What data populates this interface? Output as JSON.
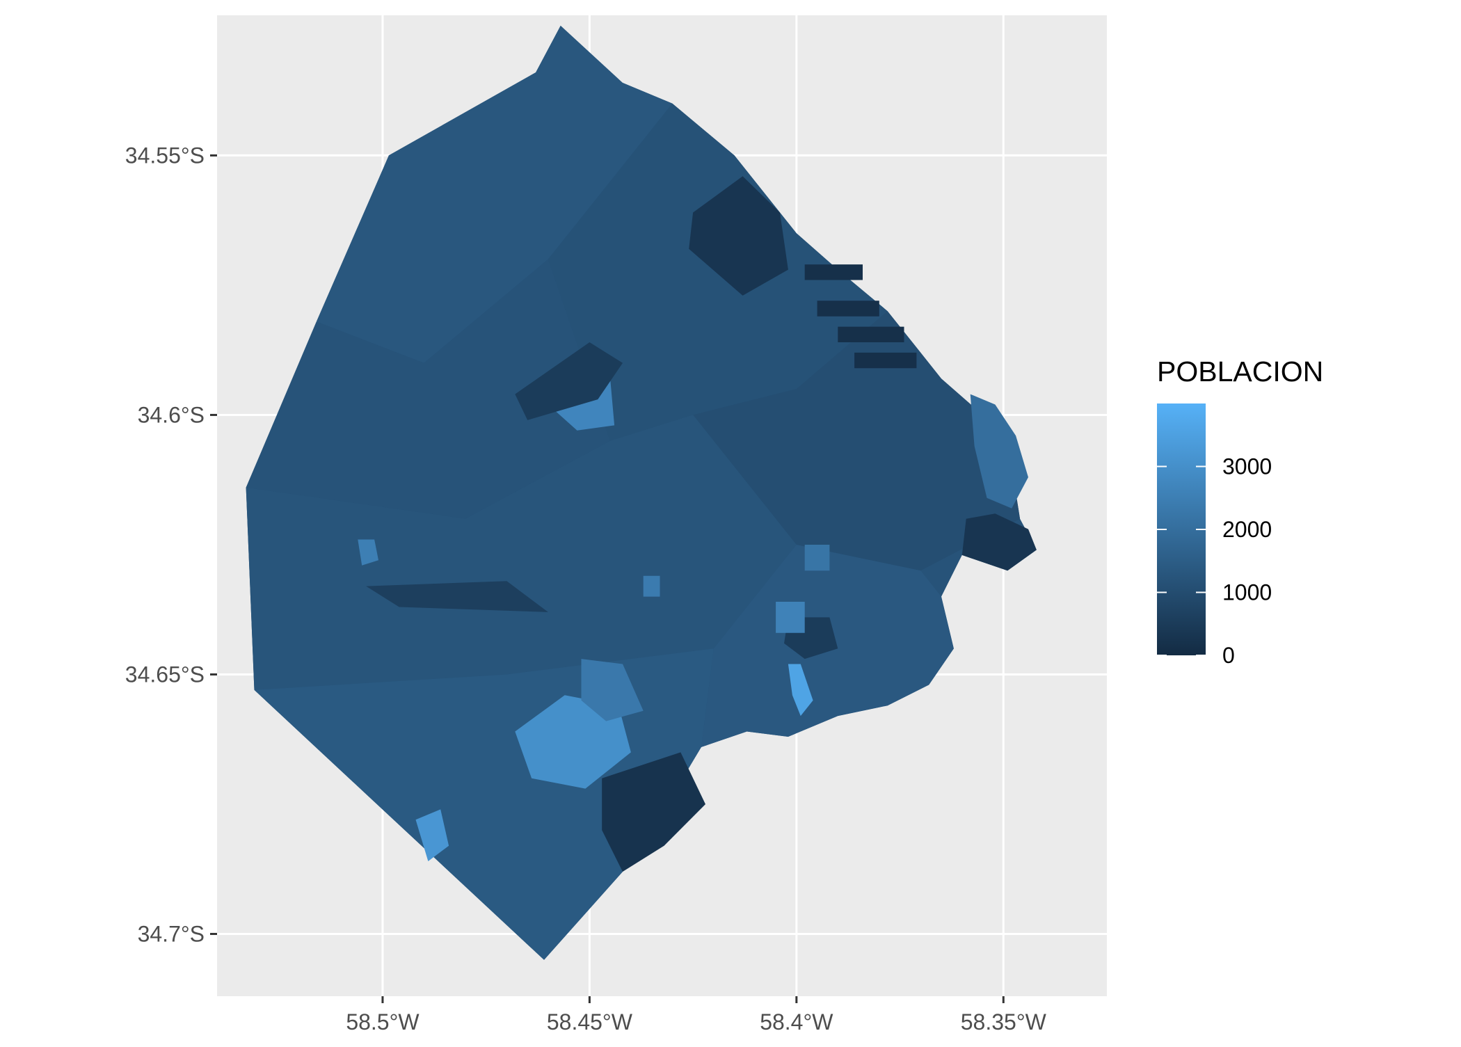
{
  "map": {
    "x_axis": {
      "label": "",
      "range": [
        -58.54,
        -58.325
      ],
      "ticks": [
        {
          "value": -58.5,
          "label": "58.5°W"
        },
        {
          "value": -58.45,
          "label": "58.45°W"
        },
        {
          "value": -58.4,
          "label": "58.4°W"
        },
        {
          "value": -58.35,
          "label": "58.35°W"
        }
      ]
    },
    "y_axis": {
      "label": "",
      "range": [
        -34.712,
        -34.523
      ],
      "ticks": [
        {
          "value": -34.55,
          "label": "34.55°S"
        },
        {
          "value": -34.6,
          "label": "34.6°S"
        },
        {
          "value": -34.65,
          "label": "34.65°S"
        },
        {
          "value": -34.7,
          "label": "34.7°S"
        }
      ]
    },
    "grid": true,
    "panel_background": "#EBEBEB",
    "legend": {
      "title": "POBLACION",
      "placement": "right",
      "low_color": "#132B43",
      "high_color": "#56B1F7",
      "range": [
        0,
        4000
      ],
      "ticks": [
        {
          "value": 0,
          "label": "0"
        },
        {
          "value": 1000,
          "label": "1000"
        },
        {
          "value": 2000,
          "label": "2000"
        },
        {
          "value": 3000,
          "label": "3000"
        }
      ]
    },
    "outline": [
      [
        -58.4985,
        -34.55
      ],
      [
        -58.463,
        -34.534
      ],
      [
        -58.457,
        -34.525
      ],
      [
        -58.454,
        -34.5285
      ],
      [
        -58.45,
        -34.533
      ],
      [
        -58.442,
        -34.536
      ],
      [
        -58.43,
        -34.54
      ],
      [
        -58.415,
        -34.55
      ],
      [
        -58.4,
        -34.565
      ],
      [
        -58.39,
        -34.572
      ],
      [
        -58.378,
        -34.58
      ],
      [
        -58.37,
        -34.588
      ],
      [
        -58.365,
        -34.593
      ],
      [
        -58.355,
        -34.6
      ],
      [
        -58.348,
        -34.61
      ],
      [
        -58.346,
        -34.62
      ],
      [
        -58.342,
        -34.626
      ],
      [
        -58.349,
        -34.63
      ],
      [
        -58.36,
        -34.627
      ],
      [
        -58.365,
        -34.635
      ],
      [
        -58.362,
        -34.645
      ],
      [
        -58.368,
        -34.652
      ],
      [
        -58.378,
        -34.656
      ],
      [
        -58.39,
        -34.658
      ],
      [
        -58.402,
        -34.662
      ],
      [
        -58.412,
        -34.661
      ],
      [
        -58.423,
        -34.664
      ],
      [
        -58.432,
        -34.676
      ],
      [
        -58.442,
        -34.688
      ],
      [
        -58.461,
        -34.705
      ],
      [
        -58.531,
        -34.653
      ],
      [
        -58.533,
        -34.614
      ],
      [
        -58.4985,
        -34.55
      ]
    ],
    "regions": [
      {
        "value": 1300,
        "poly": [
          [
            -58.4985,
            -34.55
          ],
          [
            -58.463,
            -34.534
          ],
          [
            -58.457,
            -34.525
          ],
          [
            -58.442,
            -34.536
          ],
          [
            -58.43,
            -34.54
          ],
          [
            -58.46,
            -34.57
          ],
          [
            -58.49,
            -34.59
          ],
          [
            -58.516,
            -34.582
          ]
        ]
      },
      {
        "value": 1200,
        "poly": [
          [
            -58.516,
            -34.582
          ],
          [
            -58.49,
            -34.59
          ],
          [
            -58.46,
            -34.57
          ],
          [
            -58.445,
            -34.605
          ],
          [
            -58.48,
            -34.62
          ],
          [
            -58.533,
            -34.614
          ]
        ]
      },
      {
        "value": 1150,
        "poly": [
          [
            -58.43,
            -34.54
          ],
          [
            -58.415,
            -34.55
          ],
          [
            -58.4,
            -34.565
          ],
          [
            -58.39,
            -34.572
          ],
          [
            -58.378,
            -34.58
          ],
          [
            -58.4,
            -34.595
          ],
          [
            -58.425,
            -34.6
          ],
          [
            -58.445,
            -34.605
          ],
          [
            -58.46,
            -34.57
          ]
        ]
      },
      {
        "value": 1050,
        "poly": [
          [
            -58.378,
            -34.58
          ],
          [
            -58.37,
            -34.588
          ],
          [
            -58.365,
            -34.593
          ],
          [
            -58.355,
            -34.6
          ],
          [
            -58.348,
            -34.61
          ],
          [
            -58.346,
            -34.62
          ],
          [
            -58.37,
            -34.63
          ],
          [
            -58.4,
            -34.625
          ],
          [
            -58.425,
            -34.6
          ],
          [
            -58.4,
            -34.595
          ]
        ]
      },
      {
        "value": 1250,
        "poly": [
          [
            -58.533,
            -34.614
          ],
          [
            -58.48,
            -34.62
          ],
          [
            -58.445,
            -34.605
          ],
          [
            -58.425,
            -34.6
          ],
          [
            -58.4,
            -34.625
          ],
          [
            -58.42,
            -34.645
          ],
          [
            -58.47,
            -34.65
          ],
          [
            -58.531,
            -34.653
          ]
        ]
      },
      {
        "value": 1350,
        "poly": [
          [
            -58.4,
            -34.625
          ],
          [
            -58.37,
            -34.63
          ],
          [
            -58.365,
            -34.635
          ],
          [
            -58.362,
            -34.645
          ],
          [
            -58.368,
            -34.652
          ],
          [
            -58.378,
            -34.656
          ],
          [
            -58.39,
            -34.658
          ],
          [
            -58.402,
            -34.662
          ],
          [
            -58.412,
            -34.661
          ],
          [
            -58.423,
            -34.664
          ],
          [
            -58.42,
            -34.645
          ]
        ]
      },
      {
        "value": 1400,
        "poly": [
          [
            -58.531,
            -34.653
          ],
          [
            -58.47,
            -34.65
          ],
          [
            -58.42,
            -34.645
          ],
          [
            -58.423,
            -34.664
          ],
          [
            -58.432,
            -34.676
          ],
          [
            -58.442,
            -34.688
          ],
          [
            -58.461,
            -34.705
          ]
        ]
      },
      {
        "value": 300,
        "poly": [
          [
            -58.425,
            -34.561
          ],
          [
            -58.413,
            -34.554
          ],
          [
            -58.404,
            -34.561
          ],
          [
            -58.402,
            -34.572
          ],
          [
            -58.413,
            -34.577
          ],
          [
            -58.426,
            -34.568
          ]
        ]
      },
      {
        "value": 2000,
        "poly": [
          [
            -58.358,
            -34.596
          ],
          [
            -58.352,
            -34.598
          ],
          [
            -58.347,
            -34.604
          ],
          [
            -58.344,
            -34.612
          ],
          [
            -58.348,
            -34.618
          ],
          [
            -58.354,
            -34.616
          ],
          [
            -58.357,
            -34.606
          ]
        ]
      },
      {
        "value": 300,
        "poly": [
          [
            -58.359,
            -34.62
          ],
          [
            -58.352,
            -34.619
          ],
          [
            -58.344,
            -34.622
          ],
          [
            -58.342,
            -34.626
          ],
          [
            -58.349,
            -34.63
          ],
          [
            -58.36,
            -34.627
          ]
        ]
      },
      {
        "value": 250,
        "poly": [
          [
            -58.447,
            -34.67
          ],
          [
            -58.428,
            -34.665
          ],
          [
            -58.422,
            -34.675
          ],
          [
            -58.432,
            -34.683
          ],
          [
            -58.442,
            -34.688
          ],
          [
            -58.447,
            -34.68
          ]
        ]
      },
      {
        "value": 3000,
        "poly": [
          [
            -58.468,
            -34.661
          ],
          [
            -58.456,
            -34.654
          ],
          [
            -58.443,
            -34.656
          ],
          [
            -58.44,
            -34.665
          ],
          [
            -58.451,
            -34.672
          ],
          [
            -58.464,
            -34.67
          ]
        ]
      },
      {
        "value": 2700,
        "poly": [
          [
            -58.46,
            -34.598
          ],
          [
            -58.453,
            -34.591
          ],
          [
            -58.445,
            -34.593
          ],
          [
            -58.444,
            -34.602
          ],
          [
            -58.453,
            -34.603
          ]
        ]
      },
      {
        "value": 2300,
        "poly": [
          [
            -58.452,
            -34.647
          ],
          [
            -58.442,
            -34.648
          ],
          [
            -58.437,
            -34.657
          ],
          [
            -58.446,
            -34.659
          ],
          [
            -58.452,
            -34.655
          ]
        ]
      },
      {
        "value": 3600,
        "poly": [
          [
            -58.402,
            -34.648
          ],
          [
            -58.399,
            -34.648
          ],
          [
            -58.396,
            -34.655
          ],
          [
            -58.399,
            -34.658
          ],
          [
            -58.401,
            -34.654
          ]
        ]
      },
      {
        "value": 500,
        "poly": [
          [
            -58.402,
            -34.639
          ],
          [
            -58.392,
            -34.639
          ],
          [
            -58.39,
            -34.645
          ],
          [
            -58.398,
            -34.647
          ],
          [
            -58.403,
            -34.644
          ]
        ]
      },
      {
        "value": 2600,
        "poly": [
          [
            -58.405,
            -34.636
          ],
          [
            -58.398,
            -34.636
          ],
          [
            -58.398,
            -34.642
          ],
          [
            -58.405,
            -34.642
          ]
        ]
      },
      {
        "value": 3200,
        "poly": [
          [
            -58.492,
            -34.678
          ],
          [
            -58.486,
            -34.676
          ],
          [
            -58.484,
            -34.683
          ],
          [
            -58.489,
            -34.686
          ]
        ]
      },
      {
        "value": 2500,
        "poly": [
          [
            -58.506,
            -34.624
          ],
          [
            -58.502,
            -34.624
          ],
          [
            -58.501,
            -34.628
          ],
          [
            -58.505,
            -34.629
          ]
        ]
      },
      {
        "value": 2200,
        "poly": [
          [
            -58.398,
            -34.625
          ],
          [
            -58.392,
            -34.625
          ],
          [
            -58.392,
            -34.63
          ],
          [
            -58.398,
            -34.63
          ]
        ]
      },
      {
        "value": 2400,
        "poly": [
          [
            -58.437,
            -34.631
          ],
          [
            -58.433,
            -34.631
          ],
          [
            -58.433,
            -34.635
          ],
          [
            -58.437,
            -34.635
          ]
        ]
      },
      {
        "value": 500,
        "poly": [
          [
            -58.468,
            -34.596
          ],
          [
            -58.45,
            -34.586
          ],
          [
            -58.442,
            -34.59
          ],
          [
            -58.448,
            -34.597
          ],
          [
            -58.465,
            -34.601
          ]
        ]
      },
      {
        "value": 600,
        "poly": [
          [
            -58.504,
            -34.633
          ],
          [
            -58.47,
            -34.632
          ],
          [
            -58.46,
            -34.638
          ],
          [
            -58.496,
            -34.637
          ]
        ]
      }
    ],
    "docks": [
      [
        [
          -58.398,
          -34.571
        ],
        [
          -58.384,
          -34.571
        ],
        [
          -58.384,
          -34.574
        ],
        [
          -58.398,
          -34.574
        ]
      ],
      [
        [
          -58.395,
          -34.578
        ],
        [
          -58.38,
          -34.578
        ],
        [
          -58.38,
          -34.581
        ],
        [
          -58.395,
          -34.581
        ]
      ],
      [
        [
          -58.39,
          -34.583
        ],
        [
          -58.374,
          -34.583
        ],
        [
          -58.374,
          -34.586
        ],
        [
          -58.39,
          -34.586
        ]
      ],
      [
        [
          -58.386,
          -34.588
        ],
        [
          -58.371,
          -34.588
        ],
        [
          -58.371,
          -34.591
        ],
        [
          -58.386,
          -34.591
        ]
      ]
    ]
  }
}
